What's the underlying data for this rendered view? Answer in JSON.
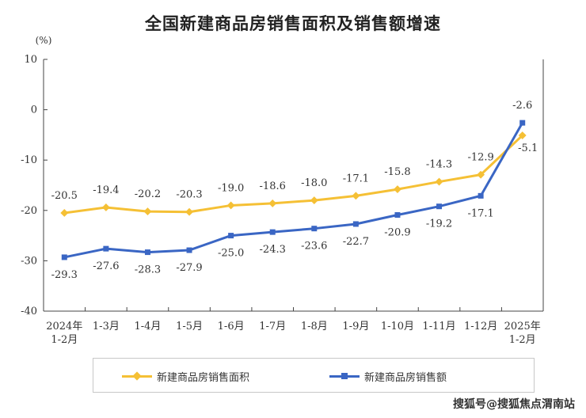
{
  "title": "全国新建商品房销售面积及销售额增速",
  "watermark": "搜狐号@搜狐焦点渭南站",
  "legend": {
    "area_label": "新建商品房销售面积",
    "amount_label": "新建商品房销售额"
  },
  "colors": {
    "area": "#f5c035",
    "amount": "#3a66c4",
    "axis": "#444444"
  },
  "chart_data": {
    "type": "line",
    "title": "全国新建商品房销售面积及销售额增速",
    "ylabel": "(%)",
    "ylim": [
      -40,
      10
    ],
    "yticks": [
      10,
      0,
      -10,
      -20,
      -30,
      -40
    ],
    "categories": [
      [
        "2024年",
        "1-2月"
      ],
      [
        "1-3月"
      ],
      [
        "1-4月"
      ],
      [
        "1-5月"
      ],
      [
        "1-6月"
      ],
      [
        "1-7月"
      ],
      [
        "1-8月"
      ],
      [
        "1-9月"
      ],
      [
        "1-10月"
      ],
      [
        "1-11月"
      ],
      [
        "1-12月"
      ],
      [
        "2025年",
        "1-2月"
      ]
    ],
    "series": [
      {
        "name": "新建商品房销售面积",
        "values": [
          -20.5,
          -19.4,
          -20.2,
          -20.3,
          -19.0,
          -18.6,
          -18.0,
          -17.1,
          -15.8,
          -14.3,
          -12.9,
          -5.1
        ]
      },
      {
        "name": "新建商品房销售额",
        "values": [
          -29.3,
          -27.6,
          -28.3,
          -27.9,
          -25.0,
          -24.3,
          -23.6,
          -22.7,
          -20.9,
          -19.2,
          -17.1,
          -2.6
        ]
      }
    ],
    "grid": false,
    "legend_position": "bottom"
  }
}
